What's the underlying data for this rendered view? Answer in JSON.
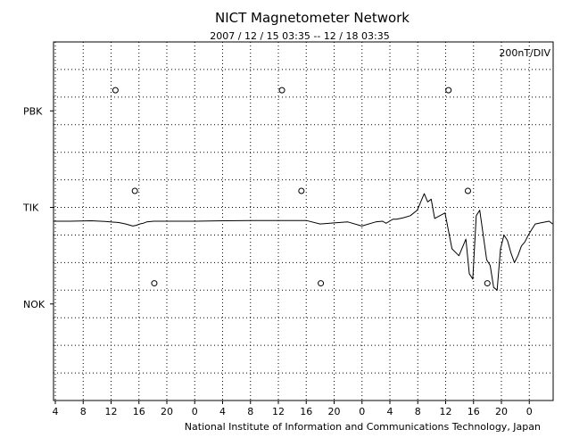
{
  "chart_data": {
    "type": "line",
    "title": "NICT Magnetometer Network",
    "subtitle": "2007 / 12 / 15   03:35 -- 12 / 18   03:35",
    "scale_label": "200nT/DIV",
    "credit": "National Institute of Information and Communications Technology, Japan",
    "grid": true,
    "x_tick_labels": [
      "4",
      "8",
      "12",
      "16",
      "20",
      "0",
      "4",
      "8",
      "12",
      "16",
      "20",
      "0",
      "4",
      "8",
      "12",
      "16",
      "20",
      "0"
    ],
    "x_range_hours": [
      3.58,
      75.58
    ],
    "station_labels": [
      "PBK",
      "TIK",
      "NOK"
    ],
    "y_unit_per_div": 200,
    "y_divisions": 13,
    "series": [
      {
        "name": "TIK",
        "baseline_div": 6.5,
        "x_hours": [
          3.6,
          6,
          9,
          11,
          13,
          14,
          15,
          15.5,
          16,
          16.5,
          17,
          18,
          20,
          24,
          28,
          32,
          36,
          40,
          42,
          44,
          46,
          48,
          50,
          51,
          51.5,
          52,
          52.5,
          53,
          54,
          55,
          56,
          57,
          57.5,
          58,
          58.5,
          60,
          61,
          62,
          63,
          63.5,
          64,
          64.5,
          65,
          66,
          66.5,
          67,
          67.5,
          68,
          68.5,
          69,
          69.5,
          70,
          70.5,
          71,
          71.5,
          72,
          72.5,
          73,
          74,
          75,
          75.5
        ],
        "values_nT": [
          0,
          0,
          3,
          -2,
          -10,
          -20,
          -35,
          -30,
          -20,
          -15,
          -5,
          0,
          0,
          0,
          3,
          5,
          5,
          5,
          -20,
          -12,
          -5,
          -35,
          -5,
          0,
          -15,
          0,
          15,
          15,
          25,
          40,
          80,
          200,
          140,
          160,
          20,
          60,
          -200,
          -250,
          -130,
          -380,
          -420,
          40,
          80,
          -280,
          -320,
          -480,
          -500,
          -200,
          -100,
          -140,
          -230,
          -300,
          -250,
          -180,
          -150,
          -100,
          -60,
          -20,
          -10,
          0,
          -20
        ]
      }
    ],
    "markers": [
      {
        "station": "PBK",
        "x_hours": 12.5,
        "offset_div": 0.75
      },
      {
        "station": "PBK",
        "x_hours": 36.5,
        "offset_div": 0.75
      },
      {
        "station": "PBK",
        "x_hours": 60.5,
        "offset_div": 0.75
      },
      {
        "station": "TIK",
        "x_hours": 15.3,
        "offset_div": 0.6
      },
      {
        "station": "TIK",
        "x_hours": 39.3,
        "offset_div": 0.6
      },
      {
        "station": "TIK",
        "x_hours": 63.3,
        "offset_div": 0.6
      },
      {
        "station": "NOK",
        "x_hours": 18.1,
        "offset_div": 0.75
      },
      {
        "station": "NOK",
        "x_hours": 42.1,
        "offset_div": 0.75
      },
      {
        "station": "NOK",
        "x_hours": 66.1,
        "offset_div": 0.75
      }
    ]
  }
}
